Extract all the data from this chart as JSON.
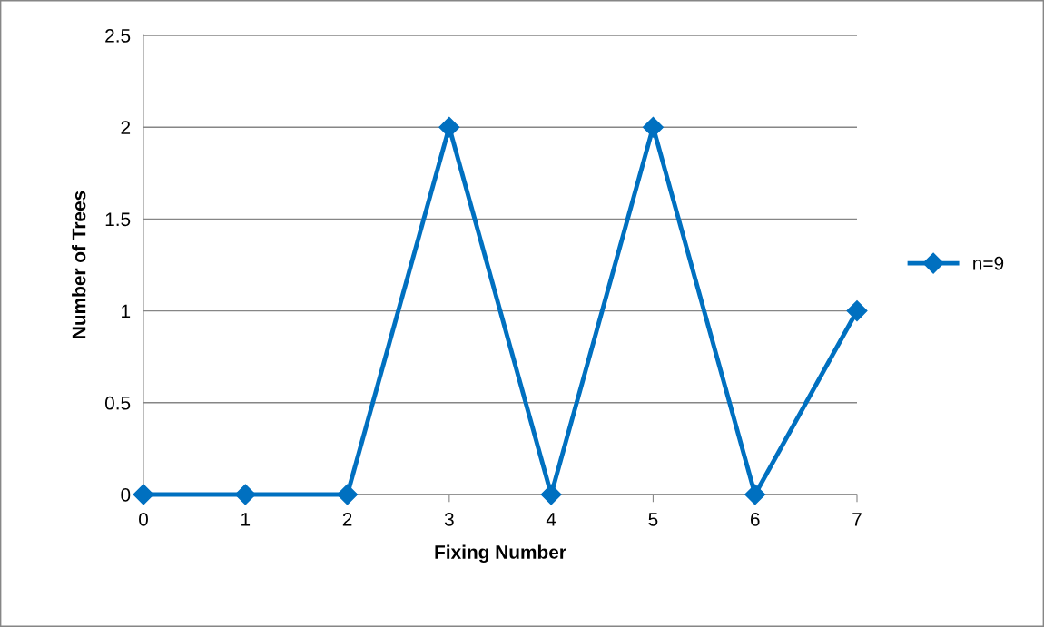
{
  "chart_data": {
    "type": "line",
    "xlabel": "Fixing Number",
    "ylabel": "Number of Trees",
    "categories": [
      "0",
      "1",
      "2",
      "3",
      "4",
      "5",
      "6",
      "7"
    ],
    "series": [
      {
        "name": "n=9",
        "color": "#0070c0",
        "values": [
          0,
          0,
          0,
          2,
          0,
          2,
          0,
          1
        ]
      }
    ],
    "ylim": [
      0,
      2.5
    ],
    "yticks": [
      0,
      0.5,
      1,
      1.5,
      2,
      2.5
    ],
    "grid": "y",
    "legend": "right",
    "marker": "diamond",
    "line_style": "solid"
  }
}
